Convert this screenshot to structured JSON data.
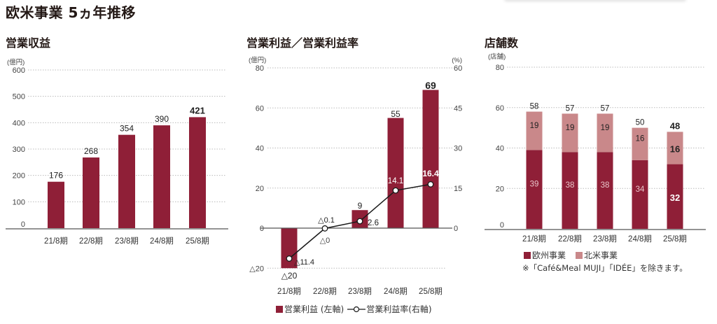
{
  "page": {
    "title": "欧米事業 5ヵ年推移"
  },
  "colors": {
    "primary_bar": "#8f1f37",
    "secondary_bar": "#c9888a",
    "line": "#1a1a1a",
    "grid": "#bbbbbb",
    "axis": "#555555",
    "tick_text": "#444444"
  },
  "panels": {
    "revenue": {
      "title": "営業収益",
      "unit": "(億円)",
      "legend": []
    },
    "profit": {
      "title": "営業利益／営業利益率",
      "unit_left": "(億円)",
      "unit_right": "(%)",
      "legend_bar": "営業利益 (左軸)",
      "legend_line": "営業利益率(右軸)"
    },
    "stores": {
      "title": "店舗数",
      "unit": "(店舗)",
      "legend_europe": "欧州事業",
      "legend_na": "北米事業",
      "note": "※「Café&Meal MUJI」「IDÉE」を除きます。"
    }
  },
  "chart_data": [
    {
      "type": "bar",
      "title": "営業収益",
      "ylabel": "(億円)",
      "xlabel": "",
      "categories": [
        "21/8期",
        "22/8期",
        "23/8期",
        "24/8期",
        "25/8期"
      ],
      "values": [
        176,
        268,
        354,
        390,
        421
      ],
      "value_labels": [
        "176",
        "268",
        "354",
        "390",
        "421"
      ],
      "ylim": [
        0,
        600
      ],
      "yticks": [
        0,
        100,
        200,
        300,
        400,
        500,
        600
      ],
      "grid": true,
      "highlight_last": true
    },
    {
      "type": "bar+line",
      "title": "営業利益／営業利益率",
      "categories": [
        "21/8期",
        "22/8期",
        "23/8期",
        "24/8期",
        "25/8期"
      ],
      "series": [
        {
          "name": "営業利益 (左軸)",
          "type": "bar",
          "axis": "left",
          "values": [
            -20,
            0,
            9,
            55,
            69
          ],
          "value_labels": [
            "△20",
            "△0",
            "9",
            "55",
            "69"
          ]
        },
        {
          "name": "営業利益率(右軸)",
          "type": "line",
          "axis": "right",
          "values": [
            -11.4,
            -0.1,
            2.6,
            14.1,
            16.4
          ],
          "value_labels": [
            "△11.4",
            "△0.1",
            "2.6",
            "14.1",
            "16.4"
          ]
        }
      ],
      "ylabel_left": "(億円)",
      "ylabel_right": "(%)",
      "ylim_left": [
        -20,
        80
      ],
      "ylim_right": [
        -15,
        60
      ],
      "yticks_left": [
        "△20",
        "0",
        "20",
        "40",
        "60",
        "80"
      ],
      "yticks_right": [
        "0",
        "15",
        "30",
        "45",
        "60"
      ],
      "grid": true,
      "legend_position": "bottom"
    },
    {
      "type": "stacked_bar",
      "title": "店舗数",
      "ylabel": "(店舗)",
      "categories": [
        "21/8期",
        "22/8期",
        "23/8期",
        "24/8期",
        "25/8期"
      ],
      "series": [
        {
          "name": "欧州事業",
          "values": [
            39,
            38,
            38,
            34,
            32
          ]
        },
        {
          "name": "北米事業",
          "values": [
            19,
            19,
            19,
            16,
            16
          ]
        }
      ],
      "totals": [
        58,
        57,
        57,
        50,
        48
      ],
      "ylim": [
        0,
        80
      ],
      "yticks": [
        0,
        20,
        40,
        60,
        80
      ],
      "grid": true,
      "legend_position": "bottom",
      "annotation": "※「Café&Meal MUJI」「IDÉE」を除きます。"
    }
  ]
}
